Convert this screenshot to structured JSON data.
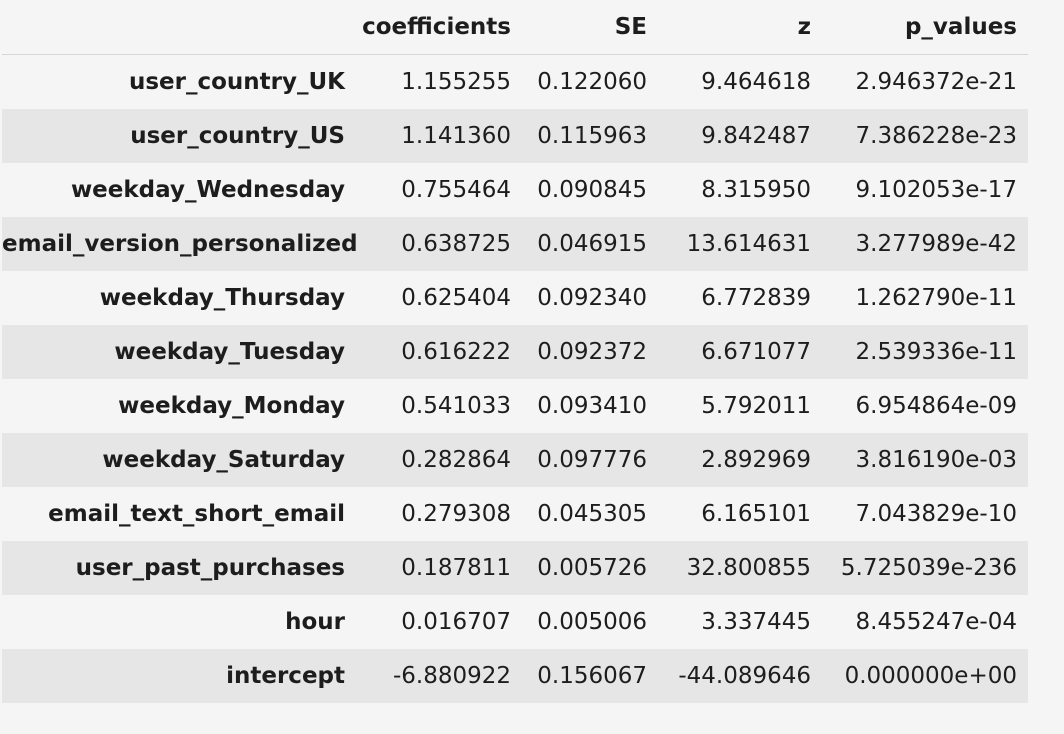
{
  "table": {
    "columns": [
      "coefficients",
      "SE",
      "z",
      "p_values"
    ],
    "rows": [
      {
        "index": "user_country_UK",
        "values": [
          "1.155255",
          "0.122060",
          "9.464618",
          "2.946372e-21"
        ]
      },
      {
        "index": "user_country_US",
        "values": [
          "1.141360",
          "0.115963",
          "9.842487",
          "7.386228e-23"
        ]
      },
      {
        "index": "weekday_Wednesday",
        "values": [
          "0.755464",
          "0.090845",
          "8.315950",
          "9.102053e-17"
        ]
      },
      {
        "index": "email_version_personalized",
        "values": [
          "0.638725",
          "0.046915",
          "13.614631",
          "3.277989e-42"
        ]
      },
      {
        "index": "weekday_Thursday",
        "values": [
          "0.625404",
          "0.092340",
          "6.772839",
          "1.262790e-11"
        ]
      },
      {
        "index": "weekday_Tuesday",
        "values": [
          "0.616222",
          "0.092372",
          "6.671077",
          "2.539336e-11"
        ]
      },
      {
        "index": "weekday_Monday",
        "values": [
          "0.541033",
          "0.093410",
          "5.792011",
          "6.954864e-09"
        ]
      },
      {
        "index": "weekday_Saturday",
        "values": [
          "0.282864",
          "0.097776",
          "2.892969",
          "3.816190e-03"
        ]
      },
      {
        "index": "email_text_short_email",
        "values": [
          "0.279308",
          "0.045305",
          "6.165101",
          "7.043829e-10"
        ]
      },
      {
        "index": "user_past_purchases",
        "values": [
          "0.187811",
          "0.005726",
          "32.800855",
          "5.725039e-236"
        ]
      },
      {
        "index": "hour",
        "values": [
          "0.016707",
          "0.005006",
          "3.337445",
          "8.455247e-04"
        ]
      },
      {
        "index": "intercept",
        "values": [
          "-6.880922",
          "0.156067",
          "-44.089646",
          "0.000000e+00"
        ]
      }
    ]
  },
  "colors": {
    "background": "#f5f5f5",
    "stripe": "#e6e6e6",
    "text": "#1d1d1d"
  }
}
